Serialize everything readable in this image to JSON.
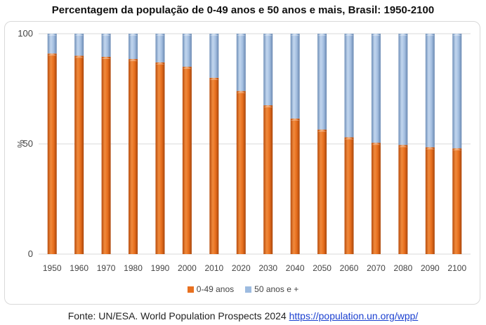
{
  "title": "Percentagem da população de 0-49 anos e 50 anos e mais, Brasil: 1950-2100",
  "source": {
    "prefix": "Fonte: UN/ESA. World Population Prospects 2024 ",
    "link_text": "https://population.un.org/wpp/"
  },
  "chart_data": {
    "type": "bar",
    "stacked": true,
    "categories": [
      "1950",
      "1960",
      "1970",
      "1980",
      "1990",
      "2000",
      "2010",
      "2020",
      "2030",
      "2040",
      "2050",
      "2060",
      "2070",
      "2080",
      "2090",
      "2100"
    ],
    "series": [
      {
        "name": "0-49 anos",
        "color": "#e8701f",
        "values": [
          91,
          90,
          89.5,
          88.5,
          87,
          85,
          80,
          74,
          67.5,
          61.5,
          56.5,
          53,
          50.5,
          49.5,
          48.5,
          48
        ]
      },
      {
        "name": "50 anos e +",
        "color": "#9dbbe0",
        "values": [
          9,
          10,
          10.5,
          11.5,
          13,
          15,
          20,
          26,
          32.5,
          38.5,
          43.5,
          47,
          49.5,
          50.5,
          51.5,
          52
        ]
      }
    ],
    "ylabel": "%",
    "xlabel": "",
    "ylim": [
      0,
      100
    ],
    "yticks": [
      0,
      50,
      100
    ],
    "grid": true,
    "legend_position": "bottom"
  }
}
